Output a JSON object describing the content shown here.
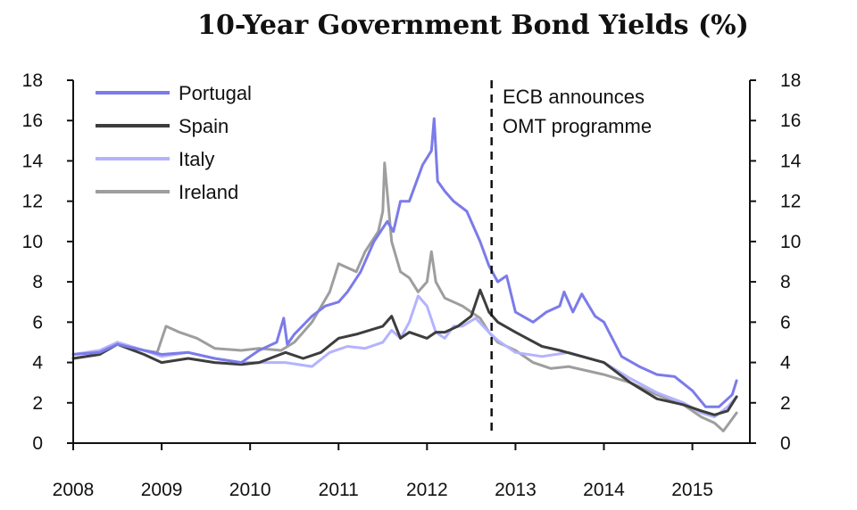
{
  "chart_data": {
    "type": "line",
    "title": "10-Year Government Bond Yields (%)",
    "xlabel": "",
    "ylabel": "",
    "xlim": [
      2008.0,
      2015.65
    ],
    "ylim": [
      0,
      18
    ],
    "y_ticks": [
      "0",
      "2",
      "4",
      "6",
      "8",
      "10",
      "12",
      "14",
      "16",
      "18"
    ],
    "x_ticks": [
      {
        "label": "2008",
        "value": 2008
      },
      {
        "label": "2009",
        "value": 2009
      },
      {
        "label": "2010",
        "value": 2010
      },
      {
        "label": "2011",
        "value": 2011
      },
      {
        "label": "2012",
        "value": 2012
      },
      {
        "label": "2013",
        "value": 2013
      },
      {
        "label": "2014",
        "value": 2014
      },
      {
        "label": "2015",
        "value": 2015
      }
    ],
    "legend_position": "top-left",
    "annotation": {
      "lines": [
        "ECB announces",
        "OMT programme"
      ],
      "x": 2012.73
    },
    "series": [
      {
        "name": "Portugal",
        "color": "#7B7BEA",
        "x": [
          2008.0,
          2008.3,
          2008.5,
          2008.8,
          2009.0,
          2009.3,
          2009.6,
          2009.9,
          2010.1,
          2010.3,
          2010.38,
          2010.42,
          2010.5,
          2010.7,
          2010.85,
          2011.0,
          2011.1,
          2011.25,
          2011.4,
          2011.55,
          2011.62,
          2011.7,
          2011.8,
          2011.95,
          2012.05,
          2012.08,
          2012.12,
          2012.2,
          2012.3,
          2012.45,
          2012.6,
          2012.7,
          2012.8,
          2012.9,
          2013.0,
          2013.2,
          2013.35,
          2013.5,
          2013.55,
          2013.65,
          2013.75,
          2013.9,
          2014.0,
          2014.2,
          2014.4,
          2014.6,
          2014.8,
          2015.0,
          2015.15,
          2015.3,
          2015.45,
          2015.5
        ],
        "y": [
          4.4,
          4.5,
          4.9,
          4.6,
          4.4,
          4.5,
          4.2,
          4.0,
          4.6,
          5.0,
          6.2,
          4.9,
          5.4,
          6.3,
          6.8,
          7.0,
          7.5,
          8.5,
          10.0,
          11.0,
          10.5,
          12.0,
          12.0,
          13.8,
          14.5,
          16.1,
          13.0,
          12.5,
          12.0,
          11.5,
          10.0,
          8.8,
          8.0,
          8.3,
          6.5,
          6.0,
          6.5,
          6.8,
          7.5,
          6.5,
          7.4,
          6.3,
          6.0,
          4.3,
          3.8,
          3.4,
          3.3,
          2.6,
          1.8,
          1.8,
          2.4,
          3.1
        ]
      },
      {
        "name": "Spain",
        "color": "#3D3D3D",
        "x": [
          2008.0,
          2008.3,
          2008.5,
          2008.8,
          2009.0,
          2009.3,
          2009.6,
          2009.9,
          2010.1,
          2010.4,
          2010.6,
          2010.8,
          2011.0,
          2011.2,
          2011.5,
          2011.6,
          2011.7,
          2011.8,
          2012.0,
          2012.1,
          2012.2,
          2012.35,
          2012.5,
          2012.6,
          2012.7,
          2012.8,
          2013.0,
          2013.3,
          2013.5,
          2014.0,
          2014.3,
          2014.6,
          2014.9,
          2015.1,
          2015.25,
          2015.4,
          2015.5
        ],
        "y": [
          4.2,
          4.4,
          4.9,
          4.4,
          4.0,
          4.2,
          4.0,
          3.9,
          4.0,
          4.5,
          4.2,
          4.5,
          5.2,
          5.4,
          5.8,
          6.3,
          5.2,
          5.5,
          5.2,
          5.5,
          5.5,
          5.8,
          6.3,
          7.6,
          6.5,
          6.0,
          5.5,
          4.8,
          4.6,
          4.0,
          3.0,
          2.2,
          1.9,
          1.6,
          1.4,
          1.6,
          2.3
        ]
      },
      {
        "name": "Italy",
        "color": "#B3B3FF",
        "x": [
          2008.0,
          2008.3,
          2008.5,
          2008.8,
          2009.0,
          2009.3,
          2009.6,
          2009.9,
          2010.1,
          2010.4,
          2010.7,
          2010.9,
          2011.1,
          2011.3,
          2011.5,
          2011.6,
          2011.7,
          2011.8,
          2011.9,
          2012.0,
          2012.1,
          2012.2,
          2012.3,
          2012.4,
          2012.55,
          2012.7,
          2012.8,
          2013.0,
          2013.3,
          2013.6,
          2014.0,
          2014.3,
          2014.6,
          2014.9,
          2015.1,
          2015.25,
          2015.4,
          2015.5
        ],
        "y": [
          4.4,
          4.6,
          5.0,
          4.6,
          4.3,
          4.5,
          4.2,
          4.0,
          4.0,
          4.0,
          3.8,
          4.5,
          4.8,
          4.7,
          5.0,
          5.6,
          5.2,
          6.0,
          7.3,
          6.8,
          5.5,
          5.2,
          5.8,
          5.8,
          6.2,
          5.5,
          5.1,
          4.5,
          4.3,
          4.5,
          4.0,
          3.2,
          2.5,
          2.0,
          1.5,
          1.3,
          1.8,
          2.3
        ]
      },
      {
        "name": "Ireland",
        "color": "#9E9E9E",
        "x": [
          2008.0,
          2008.3,
          2008.5,
          2008.8,
          2008.95,
          2009.05,
          2009.2,
          2009.4,
          2009.6,
          2009.9,
          2010.1,
          2010.35,
          2010.5,
          2010.6,
          2010.7,
          2010.9,
          2011.0,
          2011.2,
          2011.3,
          2011.45,
          2011.5,
          2011.52,
          2011.6,
          2011.7,
          2011.8,
          2011.9,
          2012.0,
          2012.05,
          2012.1,
          2012.2,
          2012.3,
          2012.4,
          2012.5,
          2012.6,
          2012.7,
          2012.8,
          2013.0,
          2013.2,
          2013.4,
          2013.6,
          2014.0,
          2014.3,
          2014.6,
          2014.9,
          2015.1,
          2015.25,
          2015.35,
          2015.45,
          2015.5
        ],
        "y": [
          4.2,
          4.4,
          5.0,
          4.6,
          4.5,
          5.8,
          5.5,
          5.2,
          4.7,
          4.6,
          4.7,
          4.6,
          5.0,
          5.5,
          6.0,
          7.5,
          8.9,
          8.5,
          9.5,
          10.5,
          11.5,
          13.9,
          10.0,
          8.5,
          8.2,
          7.5,
          8.0,
          9.5,
          8.0,
          7.2,
          7.0,
          6.8,
          6.5,
          6.2,
          5.5,
          5.0,
          4.6,
          4.0,
          3.7,
          3.8,
          3.4,
          3.0,
          2.4,
          1.9,
          1.3,
          1.0,
          0.6,
          1.2,
          1.5
        ]
      }
    ]
  }
}
